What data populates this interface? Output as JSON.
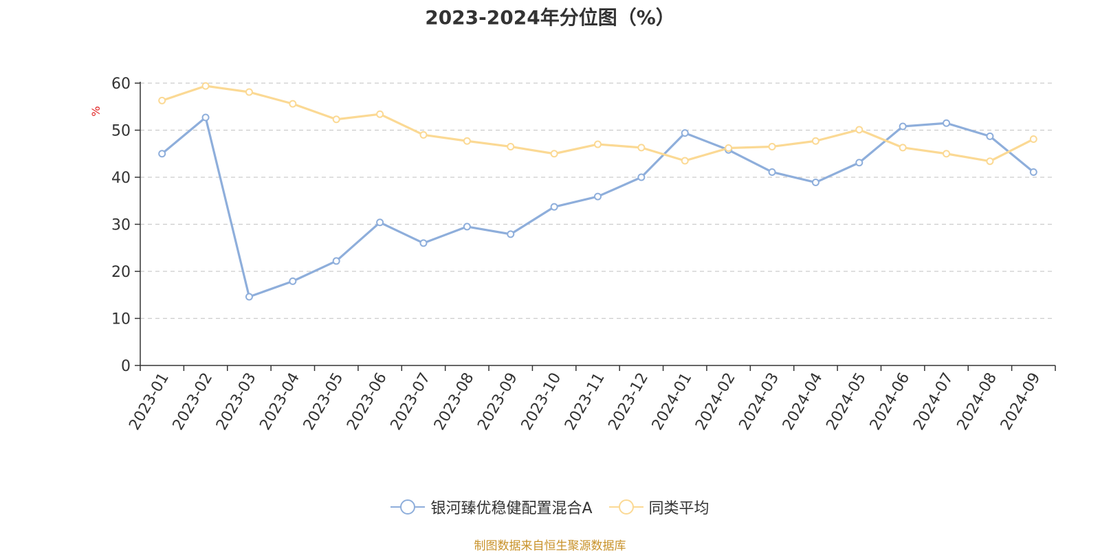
{
  "chart_data": {
    "type": "line",
    "title": "2023-2024年分位图（%）",
    "ylabel": "%",
    "xlabel": "",
    "ylim": [
      0,
      60
    ],
    "yticks": [
      0,
      10,
      20,
      30,
      40,
      50,
      60
    ],
    "grid": true,
    "legend_position": "bottom",
    "categories": [
      "2023-01",
      "2023-02",
      "2023-03",
      "2023-04",
      "2023-05",
      "2023-06",
      "2023-07",
      "2023-08",
      "2023-09",
      "2023-10",
      "2023-11",
      "2023-12",
      "2024-01",
      "2024-02",
      "2024-03",
      "2024-04",
      "2024-05",
      "2024-06",
      "2024-07",
      "2024-08",
      "2024-09"
    ],
    "series": [
      {
        "name": "银河臻优稳健配置混合A",
        "color": "#8eaedb",
        "values": [
          45.0,
          52.7,
          14.6,
          17.9,
          22.2,
          30.4,
          26.0,
          29.5,
          27.9,
          33.7,
          35.9,
          40.0,
          49.4,
          45.8,
          41.1,
          38.9,
          43.1,
          50.8,
          51.5,
          48.7,
          41.1
        ]
      },
      {
        "name": "同类平均",
        "color": "#fbd994",
        "values": [
          56.3,
          59.4,
          58.1,
          55.6,
          52.3,
          53.4,
          49.0,
          47.7,
          46.5,
          45.0,
          47.0,
          46.3,
          43.5,
          46.2,
          46.5,
          47.7,
          50.1,
          46.3,
          45.0,
          43.4,
          48.1
        ]
      }
    ]
  },
  "source_text": "制图数据来自恒生聚源数据库"
}
